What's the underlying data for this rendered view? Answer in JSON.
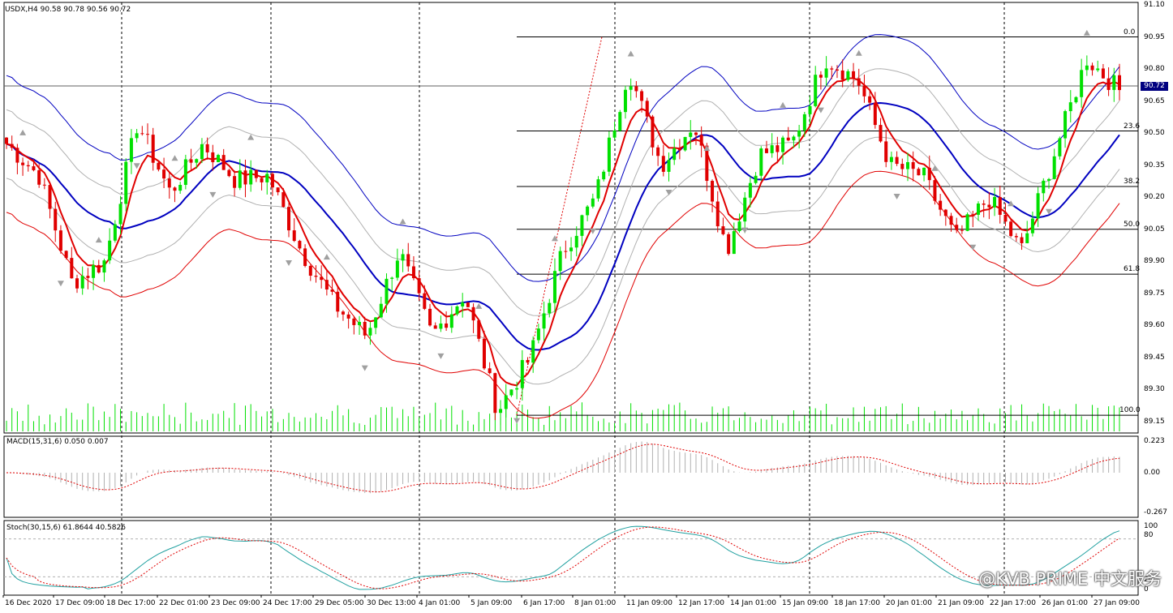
{
  "header": {
    "main": "USDX,H4  90.58 90.78 90.56 90.72",
    "macd": "MACD(15,31,6) 0.050 0.007",
    "stoch": "Stoch(30,15,6) 61.8644 40.5826"
  },
  "price_axis": [
    "91.10",
    "90.95",
    "90.80",
    "90.65",
    "90.50",
    "90.35",
    "90.20",
    "90.05",
    "89.90",
    "89.75",
    "89.60",
    "89.45",
    "89.30",
    "89.15"
  ],
  "current_price": "90.72",
  "fib_levels": [
    "0.0",
    "23.6",
    "38.2",
    "50.0",
    "61.8",
    "100.0"
  ],
  "macd_axis": [
    "0.223",
    "0.00",
    "-0.267"
  ],
  "stoch_axis": [
    "100",
    "80",
    "20",
    "0"
  ],
  "time_axis": [
    "16 Dec 2020",
    "17 Dec 09:00",
    "18 Dec 17:00",
    "22 Dec 01:00",
    "23 Dec 09:00",
    "24 Dec 17:00",
    "29 Dec 05:00",
    "30 Dec 13:00",
    "4 Jan 01:00",
    "5 Jan 09:00",
    "6 Jan 17:00",
    "8 Jan 01:00",
    "11 Jan 09:00",
    "12 Jan 17:00",
    "14 Jan 01:00",
    "15 Jan 09:00",
    "18 Jan 17:00",
    "20 Jan 01:00",
    "21 Jan 09:00",
    "22 Jan 17:00",
    "26 Jan 01:00",
    "27 Jan 09:00"
  ],
  "watermark": "@KVB PRIME 中文服务",
  "colors": {
    "bull": "#00e000",
    "bear": "#e00000",
    "ma_blue": "#0000c0",
    "band": "#0000a0",
    "grid": "#000000"
  },
  "chart_data": {
    "type": "candlestick",
    "symbol": "USDX",
    "timeframe": "H4",
    "ylim": [
      89.15,
      91.1
    ],
    "path_keypoints": [
      90.45,
      90.3,
      89.8,
      89.9,
      90.55,
      90.22,
      90.45,
      90.28,
      90.3,
      89.95,
      89.7,
      89.55,
      89.95,
      89.55,
      89.75,
      89.2,
      89.45,
      89.95,
      90.2,
      90.8,
      90.35,
      90.55,
      89.95,
      90.4,
      90.45,
      90.85,
      90.75,
      90.35,
      90.3,
      90.0,
      90.2,
      89.95,
      90.4,
      90.85,
      90.7
    ],
    "fib_prices": [
      90.95,
      90.51,
      90.25,
      90.05,
      89.84,
      89.18
    ]
  }
}
